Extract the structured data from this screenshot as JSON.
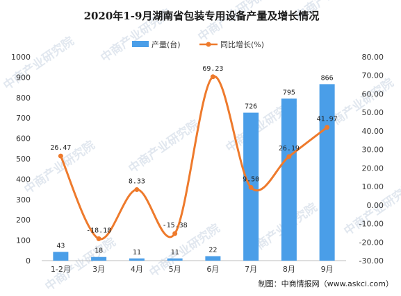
{
  "chart_data": {
    "type": "bar",
    "title": "2020年1-9月湖南省包装专用设备产量及增长情况",
    "categories": [
      "1-2月",
      "3月",
      "4月",
      "5月",
      "6月",
      "7月",
      "8月",
      "9月"
    ],
    "series": [
      {
        "name": "产量(台)",
        "kind": "bar",
        "axis": "left",
        "color": "#4a9ee8",
        "values": [
          43,
          18,
          11,
          11,
          22,
          726,
          795,
          866
        ],
        "labels": [
          "43",
          "18",
          "11",
          "11",
          "22",
          "726",
          "795",
          "866"
        ]
      },
      {
        "name": "同比增长(%)",
        "kind": "line",
        "axis": "right",
        "color": "#ee7a2c",
        "values": [
          26.47,
          -18.18,
          8.33,
          -15.38,
          69.23,
          9.5,
          26.19,
          41.97
        ],
        "labels": [
          "26.47",
          "-18.18",
          "8.33",
          "-15.38",
          "69.23",
          "9.50",
          "26.19",
          "41.97"
        ]
      }
    ],
    "y_left": {
      "ylim": [
        0,
        1000
      ],
      "ticks": [
        0,
        100,
        200,
        300,
        400,
        500,
        600,
        700,
        800,
        900,
        1000
      ],
      "tick_labels": [
        "0",
        "100",
        "200",
        "300",
        "400",
        "500",
        "600",
        "700",
        "800",
        "900",
        "1000"
      ]
    },
    "y_right": {
      "ylim": [
        -30,
        80
      ],
      "ticks": [
        -30,
        -20,
        -10,
        0,
        10,
        20,
        30,
        40,
        50,
        60,
        70,
        80
      ],
      "tick_labels": [
        "-30.00",
        "-20.00",
        "-10.00",
        "0.00",
        "10.00",
        "20.00",
        "30.00",
        "40.00",
        "50.00",
        "60.00",
        "70.00",
        "80.00"
      ]
    },
    "legend_position": "top-center",
    "grid": false
  },
  "source": "制图：中商情报网（www.askci.com）",
  "watermark": "中商产业研究院"
}
